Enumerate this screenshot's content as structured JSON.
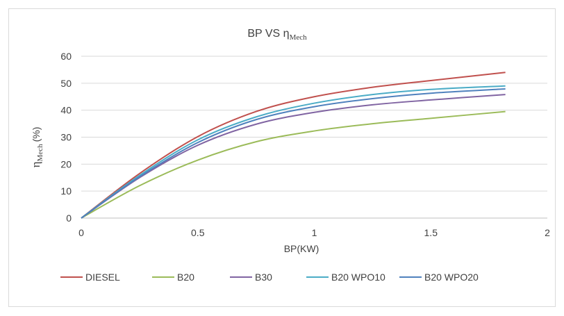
{
  "chart_data": {
    "type": "line",
    "title": "BP VS η",
    "title_subscript": "Mech",
    "xlabel": "BP(KW)",
    "ylabel": "η",
    "ylabel_subscript": "Mech",
    "ylabel_unit": "(%)",
    "xlim": [
      0,
      2
    ],
    "ylim": [
      0,
      60
    ],
    "x_ticks": [
      "0",
      "0.5",
      "1",
      "1.5",
      "2"
    ],
    "y_ticks": [
      "0",
      "10",
      "20",
      "30",
      "40",
      "50",
      "60"
    ],
    "grid": "horizontal",
    "legend_position": "bottom",
    "x": [
      0,
      0.25,
      0.5,
      0.75,
      1.0,
      1.25,
      1.5,
      1.82
    ],
    "series": [
      {
        "name": "DIESEL",
        "color": "#c0504d",
        "values": [
          0,
          16.5,
          30.2,
          39.5,
          45.0,
          48.5,
          51.0,
          54.0
        ]
      },
      {
        "name": "B20",
        "color": "#9bbb59",
        "values": [
          0,
          12.0,
          21.5,
          28.3,
          32.3,
          35.0,
          37.0,
          39.5
        ]
      },
      {
        "name": "B30",
        "color": "#8064a2",
        "values": [
          0,
          15.0,
          27.0,
          34.8,
          39.2,
          42.0,
          43.8,
          45.8
        ]
      },
      {
        "name": "B20 WPO10",
        "color": "#4bacc6",
        "values": [
          0,
          15.8,
          29.0,
          37.5,
          42.6,
          45.8,
          47.7,
          49.0
        ]
      },
      {
        "name": "B20 WPO20",
        "color": "#4f81bd",
        "values": [
          0,
          15.3,
          28.0,
          36.5,
          41.3,
          44.3,
          46.3,
          47.9
        ]
      }
    ]
  }
}
